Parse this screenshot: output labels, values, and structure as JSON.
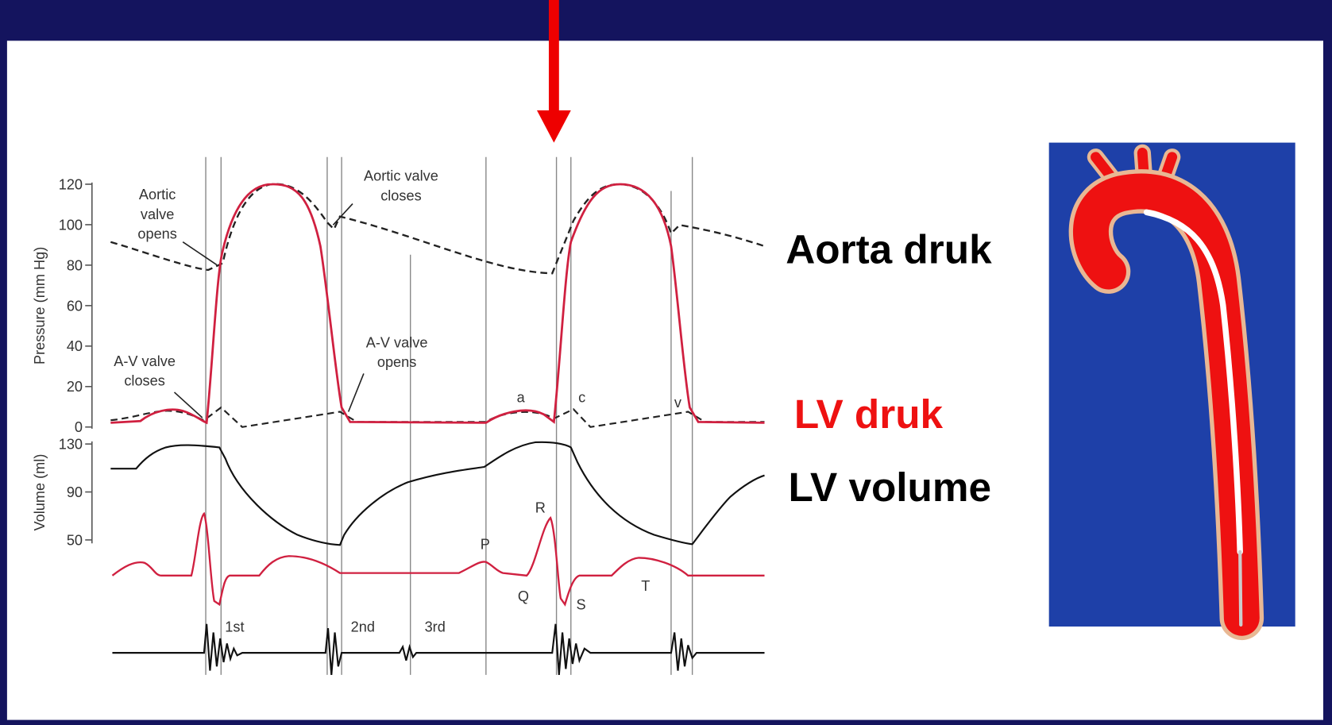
{
  "diagram": {
    "pressure_axis": {
      "label": "Pressure (mm Hg)",
      "ticks": [
        "120",
        "100",
        "80",
        "60",
        "40",
        "20",
        "0"
      ]
    },
    "volume_axis": {
      "label": "Volume (ml)",
      "ticks": [
        "130",
        "90",
        "50"
      ]
    },
    "annotations": {
      "aortic_opens": [
        "Aortic",
        "valve",
        "opens"
      ],
      "aortic_closes": [
        "Aortic valve",
        "closes"
      ],
      "av_closes": [
        "A-V valve",
        "closes"
      ],
      "av_opens": [
        "A-V valve",
        "opens"
      ],
      "waves": [
        "a",
        "c",
        "v"
      ],
      "ecg": [
        "P",
        "R",
        "Q",
        "S",
        "T"
      ],
      "sounds": [
        "1st",
        "2nd",
        "3rd"
      ]
    }
  },
  "labels": {
    "aorta": "Aorta druk",
    "lv_pressure": "LV druk",
    "lv_volume": "LV volume"
  }
}
